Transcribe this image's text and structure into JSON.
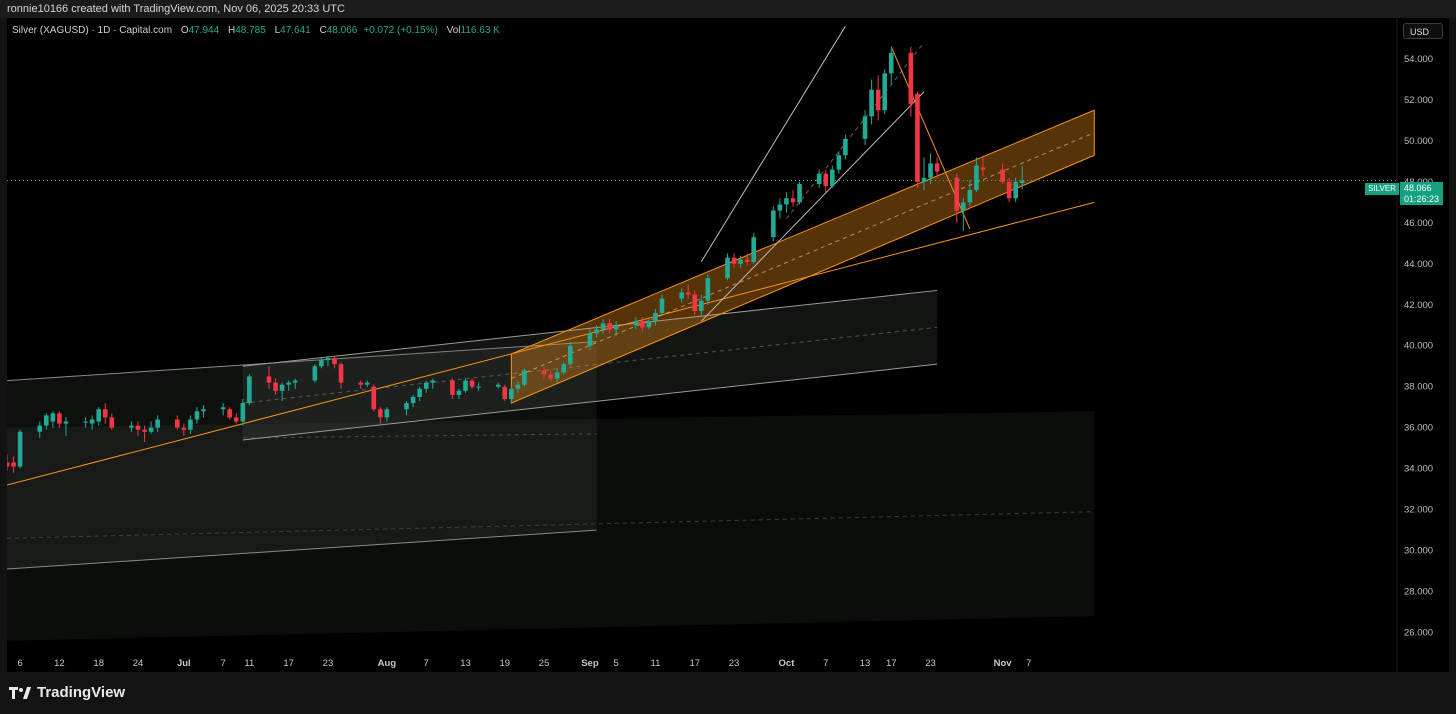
{
  "header": {
    "credit": "ronnie10166 created with TradingView.com, Nov 06, 2025 20:33 UTC"
  },
  "legend": {
    "symbol": "Silver (XAGUSD) · 1D · Capital.com",
    "open_label": "O",
    "open": "47.944",
    "high_label": "H",
    "high": "48.785",
    "low_label": "L",
    "low": "47.641",
    "close_label": "C",
    "close": "48.066",
    "change": "+0.072 (+0.15%)",
    "vol_label": "Vol",
    "volume": "116.63 K"
  },
  "currency": "USD",
  "last_price": {
    "symbol_tag": "SILVER",
    "price": "48.066",
    "countdown": "01:26:23"
  },
  "brand": {
    "name": "TradingView"
  },
  "chart_data": {
    "type": "candlestick",
    "title": "Silver (XAGUSD) · 1D · Capital.com",
    "ylim": [
      25,
      56
    ],
    "yticks": [
      26,
      28,
      30,
      32,
      34,
      36,
      38,
      40,
      42,
      44,
      46,
      48,
      50,
      52,
      54
    ],
    "ytick_labels": [
      "26.000",
      "28.000",
      "30.000",
      "32.000",
      "34.000",
      "36.000",
      "38.000",
      "40.000",
      "42.000",
      "44.000",
      "46.000",
      "48.000",
      "50.000",
      "52.000",
      "54.000"
    ],
    "xticks": [
      {
        "label": "6",
        "date": "2025-06-06"
      },
      {
        "label": "12",
        "date": "2025-06-12"
      },
      {
        "label": "18",
        "date": "2025-06-18"
      },
      {
        "label": "24",
        "date": "2025-06-24"
      },
      {
        "label": "Jul",
        "date": "2025-07-01",
        "bold": true
      },
      {
        "label": "7",
        "date": "2025-07-07"
      },
      {
        "label": "11",
        "date": "2025-07-11"
      },
      {
        "label": "17",
        "date": "2025-07-17"
      },
      {
        "label": "23",
        "date": "2025-07-23"
      },
      {
        "label": "Aug",
        "date": "2025-08-01",
        "bold": true
      },
      {
        "label": "7",
        "date": "2025-08-07"
      },
      {
        "label": "13",
        "date": "2025-08-13"
      },
      {
        "label": "19",
        "date": "2025-08-19"
      },
      {
        "label": "25",
        "date": "2025-08-25"
      },
      {
        "label": "Sep",
        "date": "2025-09-01",
        "bold": true
      },
      {
        "label": "5",
        "date": "2025-09-05"
      },
      {
        "label": "11",
        "date": "2025-09-11"
      },
      {
        "label": "17",
        "date": "2025-09-17"
      },
      {
        "label": "23",
        "date": "2025-09-23"
      },
      {
        "label": "Oct",
        "date": "2025-10-01",
        "bold": true
      },
      {
        "label": "7",
        "date": "2025-10-07"
      },
      {
        "label": "13",
        "date": "2025-10-13"
      },
      {
        "label": "17",
        "date": "2025-10-17"
      },
      {
        "label": "23",
        "date": "2025-10-23"
      },
      {
        "label": "Nov",
        "date": "2025-11-03",
        "bold": true
      },
      {
        "label": "7",
        "date": "2025-11-07"
      }
    ],
    "last_price": 48.066,
    "colors": {
      "up": "#22ab94",
      "down": "#f23645",
      "channel_orange": "#f7931a",
      "channel_white": "#bbbbbb"
    },
    "candles": [
      {
        "d": "2025-06-04",
        "o": 34.3,
        "h": 34.7,
        "l": 33.9,
        "c": 34.1
      },
      {
        "d": "2025-06-05",
        "o": 34.3,
        "h": 34.6,
        "l": 33.8,
        "c": 34.1
      },
      {
        "d": "2025-06-06",
        "o": 34.1,
        "h": 35.9,
        "l": 34.0,
        "c": 35.8
      },
      {
        "d": "2025-06-09",
        "o": 35.8,
        "h": 36.3,
        "l": 35.5,
        "c": 36.1
      },
      {
        "d": "2025-06-10",
        "o": 36.1,
        "h": 36.7,
        "l": 35.9,
        "c": 36.6
      },
      {
        "d": "2025-06-11",
        "o": 36.3,
        "h": 36.8,
        "l": 36.0,
        "c": 36.7
      },
      {
        "d": "2025-06-12",
        "o": 36.7,
        "h": 36.8,
        "l": 36.0,
        "c": 36.2
      },
      {
        "d": "2025-06-13",
        "o": 36.2,
        "h": 36.5,
        "l": 35.6,
        "c": 36.3
      },
      {
        "d": "2025-06-16",
        "o": 36.3,
        "h": 36.5,
        "l": 36.0,
        "c": 36.3
      },
      {
        "d": "2025-06-17",
        "o": 36.2,
        "h": 36.6,
        "l": 35.9,
        "c": 36.4
      },
      {
        "d": "2025-06-18",
        "o": 36.3,
        "h": 37.0,
        "l": 36.1,
        "c": 36.9
      },
      {
        "d": "2025-06-19",
        "o": 36.9,
        "h": 37.2,
        "l": 36.2,
        "c": 36.5
      },
      {
        "d": "2025-06-20",
        "o": 36.5,
        "h": 36.7,
        "l": 35.9,
        "c": 36.0
      },
      {
        "d": "2025-06-23",
        "o": 36.0,
        "h": 36.3,
        "l": 35.8,
        "c": 36.1
      },
      {
        "d": "2025-06-24",
        "o": 36.1,
        "h": 36.3,
        "l": 35.6,
        "c": 35.9
      },
      {
        "d": "2025-06-25",
        "o": 35.9,
        "h": 36.1,
        "l": 35.3,
        "c": 35.8
      },
      {
        "d": "2025-06-26",
        "o": 35.8,
        "h": 36.3,
        "l": 35.7,
        "c": 36.0
      },
      {
        "d": "2025-06-27",
        "o": 36.0,
        "h": 36.6,
        "l": 35.8,
        "c": 36.4
      },
      {
        "d": "2025-06-30",
        "o": 36.4,
        "h": 36.6,
        "l": 35.9,
        "c": 36.0
      },
      {
        "d": "2025-07-01",
        "o": 36.0,
        "h": 36.2,
        "l": 35.6,
        "c": 35.9
      },
      {
        "d": "2025-07-02",
        "o": 35.9,
        "h": 36.6,
        "l": 35.7,
        "c": 36.4
      },
      {
        "d": "2025-07-03",
        "o": 36.4,
        "h": 37.0,
        "l": 36.2,
        "c": 36.8
      },
      {
        "d": "2025-07-04",
        "o": 36.8,
        "h": 37.1,
        "l": 36.5,
        "c": 36.9
      },
      {
        "d": "2025-07-07",
        "o": 36.9,
        "h": 37.2,
        "l": 36.6,
        "c": 37.0
      },
      {
        "d": "2025-07-08",
        "o": 36.9,
        "h": 37.0,
        "l": 36.4,
        "c": 36.5
      },
      {
        "d": "2025-07-09",
        "o": 36.5,
        "h": 36.7,
        "l": 36.2,
        "c": 36.3
      },
      {
        "d": "2025-07-10",
        "o": 36.3,
        "h": 37.4,
        "l": 36.1,
        "c": 37.2
      },
      {
        "d": "2025-07-11",
        "o": 37.2,
        "h": 38.6,
        "l": 37.1,
        "c": 38.5
      },
      {
        "d": "2025-07-14",
        "o": 38.5,
        "h": 39.0,
        "l": 37.9,
        "c": 38.2
      },
      {
        "d": "2025-07-15",
        "o": 38.2,
        "h": 38.4,
        "l": 37.6,
        "c": 37.8
      },
      {
        "d": "2025-07-16",
        "o": 37.8,
        "h": 38.2,
        "l": 37.3,
        "c": 38.1
      },
      {
        "d": "2025-07-17",
        "o": 38.1,
        "h": 38.3,
        "l": 37.8,
        "c": 38.2
      },
      {
        "d": "2025-07-18",
        "o": 38.2,
        "h": 38.4,
        "l": 37.9,
        "c": 38.3
      },
      {
        "d": "2025-07-21",
        "o": 38.3,
        "h": 39.1,
        "l": 38.2,
        "c": 39.0
      },
      {
        "d": "2025-07-22",
        "o": 39.0,
        "h": 39.4,
        "l": 38.9,
        "c": 39.3
      },
      {
        "d": "2025-07-23",
        "o": 39.3,
        "h": 39.5,
        "l": 39.0,
        "c": 39.4
      },
      {
        "d": "2025-07-24",
        "o": 39.4,
        "h": 39.5,
        "l": 38.9,
        "c": 39.1
      },
      {
        "d": "2025-07-25",
        "o": 39.1,
        "h": 39.2,
        "l": 37.9,
        "c": 38.2
      },
      {
        "d": "2025-07-28",
        "o": 38.2,
        "h": 38.3,
        "l": 37.9,
        "c": 38.1
      },
      {
        "d": "2025-07-29",
        "o": 38.1,
        "h": 38.3,
        "l": 38.0,
        "c": 38.2
      },
      {
        "d": "2025-07-30",
        "o": 38.0,
        "h": 38.1,
        "l": 36.8,
        "c": 36.9
      },
      {
        "d": "2025-07-31",
        "o": 36.9,
        "h": 37.0,
        "l": 36.2,
        "c": 36.5
      },
      {
        "d": "2025-08-01",
        "o": 36.5,
        "h": 37.0,
        "l": 36.3,
        "c": 36.9
      },
      {
        "d": "2025-08-04",
        "o": 36.9,
        "h": 37.3,
        "l": 36.6,
        "c": 37.2
      },
      {
        "d": "2025-08-05",
        "o": 37.2,
        "h": 37.6,
        "l": 37.0,
        "c": 37.5
      },
      {
        "d": "2025-08-06",
        "o": 37.5,
        "h": 38.0,
        "l": 37.3,
        "c": 37.9
      },
      {
        "d": "2025-08-07",
        "o": 37.9,
        "h": 38.3,
        "l": 37.7,
        "c": 38.2
      },
      {
        "d": "2025-08-08",
        "o": 38.2,
        "h": 38.4,
        "l": 37.9,
        "c": 38.3
      },
      {
        "d": "2025-08-11",
        "o": 38.3,
        "h": 38.4,
        "l": 37.4,
        "c": 37.6
      },
      {
        "d": "2025-08-12",
        "o": 37.6,
        "h": 37.9,
        "l": 37.4,
        "c": 37.8
      },
      {
        "d": "2025-08-13",
        "o": 37.8,
        "h": 38.4,
        "l": 37.7,
        "c": 38.3
      },
      {
        "d": "2025-08-14",
        "o": 38.3,
        "h": 38.4,
        "l": 37.9,
        "c": 38.0
      },
      {
        "d": "2025-08-15",
        "o": 38.0,
        "h": 38.2,
        "l": 37.8,
        "c": 38.0
      },
      {
        "d": "2025-08-18",
        "o": 38.0,
        "h": 38.2,
        "l": 37.9,
        "c": 38.1
      },
      {
        "d": "2025-08-19",
        "o": 38.0,
        "h": 38.1,
        "l": 37.3,
        "c": 37.4
      },
      {
        "d": "2025-08-20",
        "o": 37.4,
        "h": 38.0,
        "l": 37.2,
        "c": 37.9
      },
      {
        "d": "2025-08-21",
        "o": 37.9,
        "h": 38.3,
        "l": 37.7,
        "c": 38.1
      },
      {
        "d": "2025-08-22",
        "o": 38.1,
        "h": 38.9,
        "l": 38.0,
        "c": 38.8
      },
      {
        "d": "2025-08-25",
        "o": 38.8,
        "h": 39.0,
        "l": 38.4,
        "c": 38.6
      },
      {
        "d": "2025-08-26",
        "o": 38.6,
        "h": 38.8,
        "l": 38.3,
        "c": 38.4
      },
      {
        "d": "2025-08-27",
        "o": 38.4,
        "h": 38.9,
        "l": 38.2,
        "c": 38.7
      },
      {
        "d": "2025-08-28",
        "o": 38.7,
        "h": 39.2,
        "l": 38.6,
        "c": 39.1
      },
      {
        "d": "2025-08-29",
        "o": 39.1,
        "h": 40.2,
        "l": 39.0,
        "c": 40.0
      },
      {
        "d": "2025-09-01",
        "o": 40.0,
        "h": 40.8,
        "l": 39.8,
        "c": 40.6
      },
      {
        "d": "2025-09-02",
        "o": 40.6,
        "h": 41.0,
        "l": 40.4,
        "c": 40.8
      },
      {
        "d": "2025-09-03",
        "o": 40.8,
        "h": 41.3,
        "l": 40.6,
        "c": 41.1
      },
      {
        "d": "2025-09-04",
        "o": 41.1,
        "h": 41.3,
        "l": 40.6,
        "c": 40.8
      },
      {
        "d": "2025-09-05",
        "o": 40.8,
        "h": 41.2,
        "l": 40.5,
        "c": 41.0
      },
      {
        "d": "2025-09-08",
        "o": 41.0,
        "h": 41.4,
        "l": 40.8,
        "c": 41.2
      },
      {
        "d": "2025-09-09",
        "o": 41.2,
        "h": 41.4,
        "l": 40.7,
        "c": 40.9
      },
      {
        "d": "2025-09-10",
        "o": 40.9,
        "h": 41.3,
        "l": 40.8,
        "c": 41.2
      },
      {
        "d": "2025-09-11",
        "o": 41.2,
        "h": 41.8,
        "l": 41.0,
        "c": 41.6
      },
      {
        "d": "2025-09-12",
        "o": 41.6,
        "h": 42.5,
        "l": 41.5,
        "c": 42.3
      },
      {
        "d": "2025-09-15",
        "o": 42.3,
        "h": 42.8,
        "l": 42.1,
        "c": 42.6
      },
      {
        "d": "2025-09-16",
        "o": 42.6,
        "h": 43.0,
        "l": 42.3,
        "c": 42.5
      },
      {
        "d": "2025-09-17",
        "o": 42.5,
        "h": 42.7,
        "l": 41.5,
        "c": 41.7
      },
      {
        "d": "2025-09-18",
        "o": 41.7,
        "h": 42.5,
        "l": 41.4,
        "c": 42.2
      },
      {
        "d": "2025-09-19",
        "o": 42.2,
        "h": 43.5,
        "l": 42.0,
        "c": 43.3
      },
      {
        "d": "2025-09-22",
        "o": 43.3,
        "h": 44.5,
        "l": 43.2,
        "c": 44.3
      },
      {
        "d": "2025-09-23",
        "o": 44.3,
        "h": 44.5,
        "l": 43.8,
        "c": 44.0
      },
      {
        "d": "2025-09-24",
        "o": 44.0,
        "h": 44.4,
        "l": 43.8,
        "c": 44.2
      },
      {
        "d": "2025-09-25",
        "o": 44.2,
        "h": 44.5,
        "l": 43.9,
        "c": 44.1
      },
      {
        "d": "2025-09-26",
        "o": 44.1,
        "h": 45.5,
        "l": 44.0,
        "c": 45.3
      },
      {
        "d": "2025-09-29",
        "o": 45.3,
        "h": 46.8,
        "l": 45.1,
        "c": 46.6
      },
      {
        "d": "2025-09-30",
        "o": 46.6,
        "h": 47.2,
        "l": 46.2,
        "c": 46.9
      },
      {
        "d": "2025-10-01",
        "o": 46.9,
        "h": 47.5,
        "l": 46.5,
        "c": 47.2
      },
      {
        "d": "2025-10-02",
        "o": 47.2,
        "h": 47.6,
        "l": 46.8,
        "c": 47.0
      },
      {
        "d": "2025-10-03",
        "o": 47.0,
        "h": 48.0,
        "l": 46.9,
        "c": 47.9
      },
      {
        "d": "2025-10-06",
        "o": 47.9,
        "h": 48.6,
        "l": 47.7,
        "c": 48.4
      },
      {
        "d": "2025-10-07",
        "o": 48.4,
        "h": 48.6,
        "l": 47.5,
        "c": 47.8
      },
      {
        "d": "2025-10-08",
        "o": 47.8,
        "h": 48.8,
        "l": 47.7,
        "c": 48.6
      },
      {
        "d": "2025-10-09",
        "o": 48.6,
        "h": 49.5,
        "l": 48.4,
        "c": 49.3
      },
      {
        "d": "2025-10-10",
        "o": 49.3,
        "h": 50.3,
        "l": 49.1,
        "c": 50.1
      },
      {
        "d": "2025-10-13",
        "o": 50.1,
        "h": 51.5,
        "l": 49.8,
        "c": 51.2
      },
      {
        "d": "2025-10-14",
        "o": 51.2,
        "h": 53.0,
        "l": 50.8,
        "c": 52.5
      },
      {
        "d": "2025-10-15",
        "o": 52.5,
        "h": 53.2,
        "l": 51.0,
        "c": 51.5
      },
      {
        "d": "2025-10-16",
        "o": 51.5,
        "h": 53.5,
        "l": 51.3,
        "c": 53.3
      },
      {
        "d": "2025-10-17",
        "o": 53.3,
        "h": 54.5,
        "l": 52.8,
        "c": 54.3
      },
      {
        "d": "2025-10-20",
        "o": 54.3,
        "h": 54.6,
        "l": 51.2,
        "c": 51.8
      },
      {
        "d": "2025-10-21",
        "o": 52.3,
        "h": 52.4,
        "l": 47.7,
        "c": 48.0
      },
      {
        "d": "2025-10-22",
        "o": 48.0,
        "h": 49.2,
        "l": 47.6,
        "c": 48.2
      },
      {
        "d": "2025-10-23",
        "o": 48.2,
        "h": 49.4,
        "l": 47.9,
        "c": 48.9
      },
      {
        "d": "2025-10-24",
        "o": 48.9,
        "h": 49.2,
        "l": 48.2,
        "c": 48.5
      },
      {
        "d": "2025-10-27",
        "o": 48.2,
        "h": 48.4,
        "l": 46.0,
        "c": 46.6
      },
      {
        "d": "2025-10-28",
        "o": 46.6,
        "h": 47.2,
        "l": 45.6,
        "c": 47.0
      },
      {
        "d": "2025-10-29",
        "o": 47.0,
        "h": 48.1,
        "l": 46.8,
        "c": 47.6
      },
      {
        "d": "2025-10-30",
        "o": 47.6,
        "h": 49.2,
        "l": 47.5,
        "c": 48.8
      },
      {
        "d": "2025-10-31",
        "o": 48.7,
        "h": 49.3,
        "l": 48.3,
        "c": 48.6
      },
      {
        "d": "2025-11-03",
        "o": 48.6,
        "h": 48.9,
        "l": 47.9,
        "c": 48.0
      },
      {
        "d": "2025-11-04",
        "o": 48.0,
        "h": 48.2,
        "l": 47.0,
        "c": 47.2
      },
      {
        "d": "2025-11-05",
        "o": 47.2,
        "h": 48.2,
        "l": 47.0,
        "c": 48.0
      },
      {
        "d": "2025-11-06",
        "o": 47.944,
        "h": 48.785,
        "l": 47.641,
        "c": 48.066
      }
    ]
  }
}
